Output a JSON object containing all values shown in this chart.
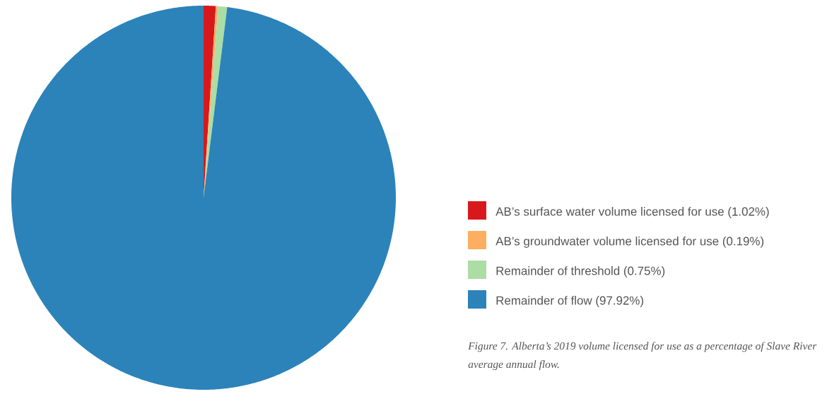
{
  "chart_data": {
    "type": "pie",
    "categories": [
      "AB’s surface water volume licensed for use (1.02%)",
      "AB’s groundwater volume licensed for use (0.19%)",
      "Remainder of threshold (0.75%)",
      "Remainder of flow (97.92%)"
    ],
    "values": [
      1.02,
      0.19,
      0.75,
      97.92
    ],
    "colors": [
      "#d7191c",
      "#fdae61",
      "#abdda4",
      "#2b83ba"
    ],
    "legend": "right",
    "annotations": [
      "*Figure 7. Alberta’s 2019 volume licensed for use as a percentage of Slave River average annual flow.*"
    ]
  }
}
